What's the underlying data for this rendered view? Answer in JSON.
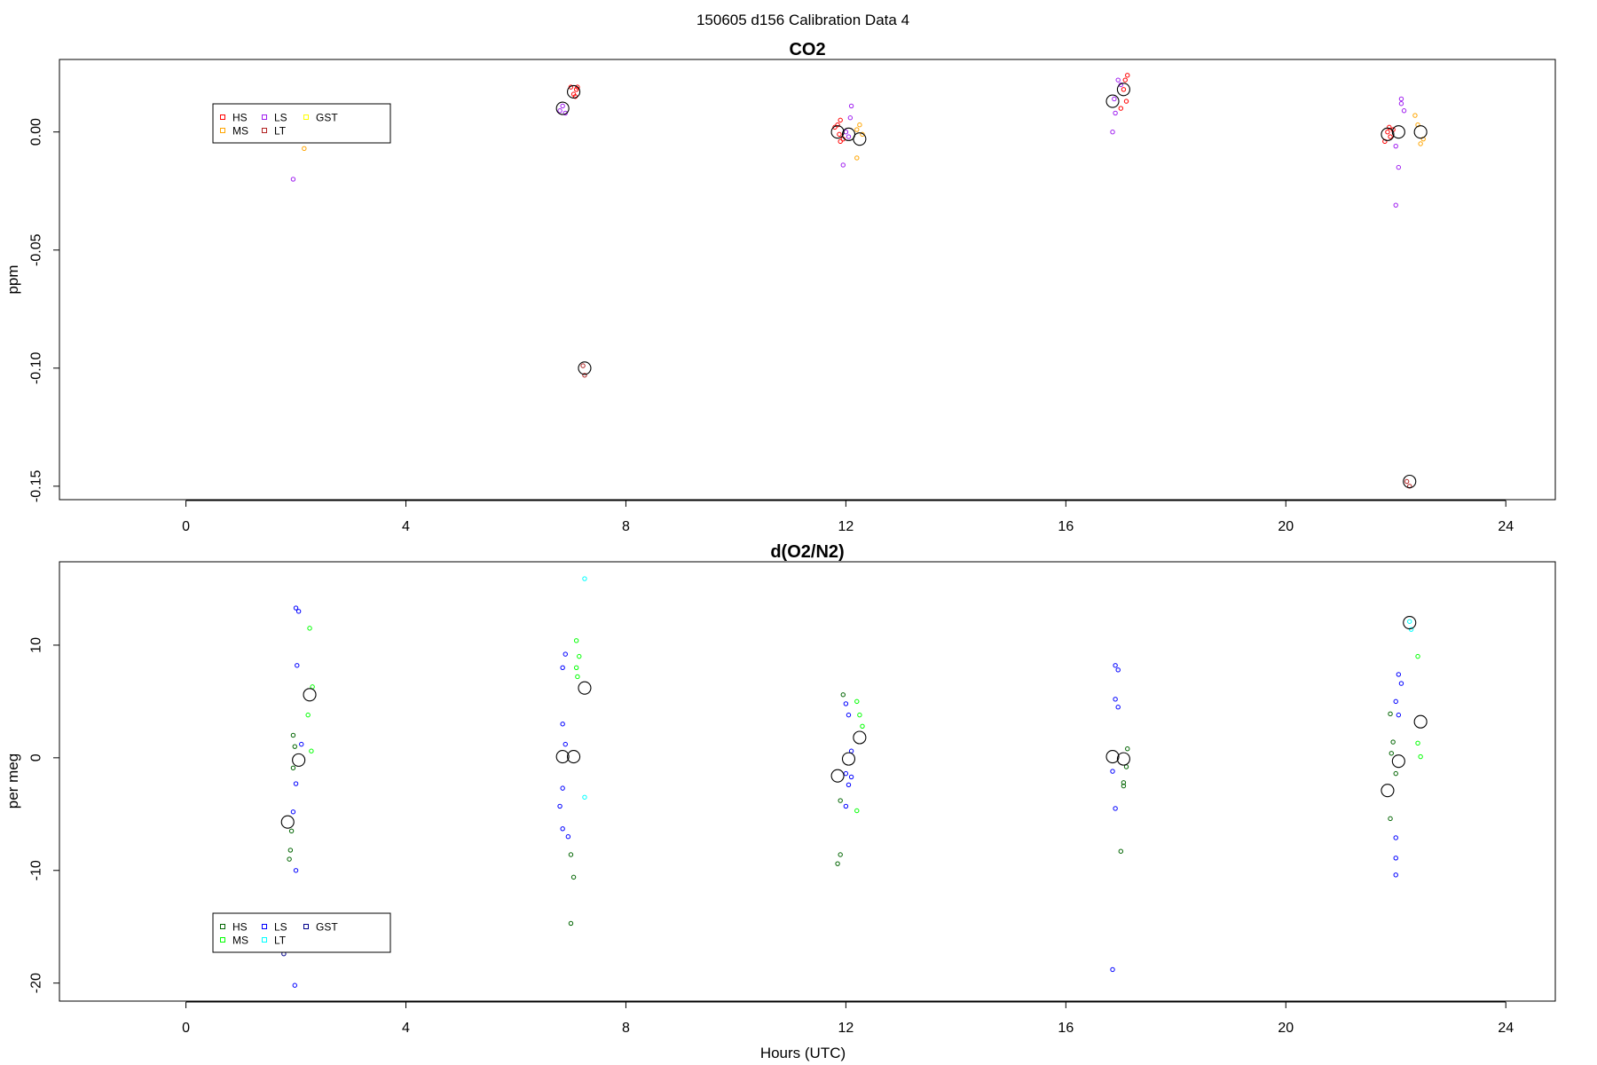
{
  "figure": {
    "title": "150605   d156   Calibration Data 4",
    "xlabel": "Hours (UTC)"
  },
  "chart_data": [
    {
      "type": "scatter",
      "title": "CO2",
      "xlabel": "",
      "ylabel": "ppm",
      "xlim": [
        -2.3,
        24.9
      ],
      "ylim": [
        -0.1557,
        0.0307
      ],
      "xticks": [
        0,
        4,
        8,
        12,
        16,
        20,
        24
      ],
      "yticks": [
        0.0,
        -0.05,
        -0.1,
        -0.15
      ],
      "ytick_labels": [
        "0.00",
        "-0.05",
        "-0.10",
        "-0.15"
      ],
      "legend": {
        "position": "top-left",
        "entries": [
          {
            "label": "HS",
            "color": "#ff0000"
          },
          {
            "label": "MS",
            "color": "#ffa500"
          },
          {
            "label": "LS",
            "color": "#a020f0"
          },
          {
            "label": "LT",
            "color": "#b22222"
          },
          {
            "label": "GST",
            "color": "#ffff00"
          }
        ]
      },
      "series": [
        {
          "name": "HS",
          "color": "#ff0000",
          "points": [
            [
              7.05,
              0.016
            ],
            [
              7.1,
              0.018
            ],
            [
              7.0,
              0.019
            ],
            [
              7.08,
              0.015
            ],
            [
              7.12,
              0.019
            ],
            [
              11.85,
              0.003
            ],
            [
              11.9,
              0.005
            ],
            [
              11.88,
              -0.001
            ],
            [
              11.95,
              -0.003
            ],
            [
              11.8,
              0.002
            ],
            [
              11.9,
              -0.004
            ],
            [
              17.05,
              0.018
            ],
            [
              17.1,
              0.013
            ],
            [
              17.0,
              0.01
            ],
            [
              17.08,
              0.022
            ],
            [
              17.12,
              0.024
            ],
            [
              21.85,
              0.0
            ],
            [
              21.9,
              -0.002
            ],
            [
              21.8,
              -0.004
            ],
            [
              21.95,
              0.001
            ],
            [
              21.88,
              0.002
            ]
          ]
        },
        {
          "name": "MS",
          "color": "#ffa500",
          "points": [
            [
              2.15,
              -0.007
            ],
            [
              12.2,
              -0.011
            ],
            [
              12.25,
              0.003
            ],
            [
              12.3,
              -0.001
            ],
            [
              12.2,
              0.001
            ],
            [
              22.4,
              0.003
            ],
            [
              22.45,
              -0.005
            ],
            [
              22.35,
              0.007
            ],
            [
              22.5,
              -0.003
            ]
          ]
        },
        {
          "name": "LS",
          "color": "#a020f0",
          "points": [
            [
              1.95,
              -0.02
            ],
            [
              6.85,
              0.011
            ],
            [
              6.9,
              0.008
            ],
            [
              6.8,
              0.009
            ],
            [
              12.0,
              0.0
            ],
            [
              12.05,
              -0.002
            ],
            [
              12.1,
              0.011
            ],
            [
              11.95,
              -0.014
            ],
            [
              12.08,
              0.006
            ],
            [
              16.85,
              0.0
            ],
            [
              16.9,
              0.008
            ],
            [
              16.95,
              0.022
            ],
            [
              17.0,
              0.02
            ],
            [
              16.88,
              0.014
            ],
            [
              22.1,
              0.014
            ],
            [
              22.05,
              -0.015
            ],
            [
              22.0,
              -0.031
            ],
            [
              22.15,
              0.009
            ],
            [
              22.1,
              0.012
            ],
            [
              22.0,
              -0.006
            ]
          ]
        },
        {
          "name": "LT",
          "color": "#b22222",
          "points": [
            [
              7.25,
              -0.103
            ],
            [
              7.22,
              -0.099
            ],
            [
              22.25,
              -0.15
            ],
            [
              22.2,
              -0.148
            ]
          ]
        },
        {
          "name": "mean",
          "color": "#000000",
          "marker": "large-circle",
          "points": [
            [
              6.85,
              0.01
            ],
            [
              7.05,
              0.017
            ],
            [
              7.25,
              -0.1
            ],
            [
              11.85,
              0.0
            ],
            [
              12.05,
              -0.001
            ],
            [
              12.25,
              -0.003
            ],
            [
              16.85,
              0.013
            ],
            [
              17.05,
              0.018
            ],
            [
              21.85,
              -0.001
            ],
            [
              22.05,
              0.0
            ],
            [
              22.25,
              -0.148
            ],
            [
              22.45,
              0.0
            ]
          ]
        }
      ]
    },
    {
      "type": "scatter",
      "title": "d(O2/N2)",
      "xlabel": "Hours (UTC)",
      "ylabel": "per meg",
      "xlim": [
        -2.3,
        24.9
      ],
      "ylim": [
        -21.6,
        17.4
      ],
      "xticks": [
        0,
        4,
        8,
        12,
        16,
        20,
        24
      ],
      "yticks": [
        10,
        0,
        -10,
        -20
      ],
      "ytick_labels": [
        "10",
        "0",
        "-10",
        "-20"
      ],
      "legend": {
        "position": "bottom-left",
        "entries": [
          {
            "label": "HS",
            "color": "#006400"
          },
          {
            "label": "MS",
            "color": "#00ff00"
          },
          {
            "label": "LS",
            "color": "#0000ff"
          },
          {
            "label": "LT",
            "color": "#00ffff"
          },
          {
            "label": "GST",
            "color": "#00008b"
          }
        ]
      },
      "series": [
        {
          "name": "HS",
          "color": "#006400",
          "points": [
            [
              1.88,
              -9.0
            ],
            [
              1.9,
              -8.2
            ],
            [
              1.92,
              -6.5
            ],
            [
              1.95,
              -0.9
            ],
            [
              1.95,
              2.0
            ],
            [
              1.98,
              1.0
            ],
            [
              7.0,
              -14.7
            ],
            [
              7.0,
              -8.6
            ],
            [
              7.05,
              -10.6
            ],
            [
              11.85,
              -9.4
            ],
            [
              11.9,
              -8.6
            ],
            [
              11.9,
              -3.8
            ],
            [
              11.95,
              5.6
            ],
            [
              17.05,
              -2.2
            ],
            [
              17.0,
              -8.3
            ],
            [
              17.1,
              -0.8
            ],
            [
              17.05,
              -2.5
            ],
            [
              17.12,
              0.8
            ],
            [
              21.9,
              -5.4
            ],
            [
              21.9,
              3.9
            ],
            [
              21.95,
              1.4
            ],
            [
              22.0,
              -1.4
            ],
            [
              21.92,
              0.4
            ]
          ]
        },
        {
          "name": "MS",
          "color": "#00ff00",
          "points": [
            [
              2.25,
              11.5
            ],
            [
              2.3,
              6.3
            ],
            [
              2.22,
              3.8
            ],
            [
              2.28,
              0.6
            ],
            [
              7.1,
              10.4
            ],
            [
              7.1,
              8.0
            ],
            [
              7.15,
              9.0
            ],
            [
              7.12,
              7.2
            ],
            [
              12.2,
              5.0
            ],
            [
              12.25,
              3.8
            ],
            [
              12.3,
              2.8
            ],
            [
              12.2,
              -4.7
            ],
            [
              22.4,
              1.3
            ],
            [
              22.45,
              0.1
            ],
            [
              22.4,
              9.0
            ]
          ]
        },
        {
          "name": "LS",
          "color": "#0000ff",
          "points": [
            [
              2.0,
              13.3
            ],
            [
              2.05,
              13.0
            ],
            [
              2.02,
              8.2
            ],
            [
              2.1,
              1.2
            ],
            [
              2.0,
              -2.3
            ],
            [
              1.95,
              -4.8
            ],
            [
              2.0,
              -10.0
            ],
            [
              1.98,
              -20.2
            ],
            [
              6.85,
              8.0
            ],
            [
              6.9,
              9.2
            ],
            [
              6.85,
              3.0
            ],
            [
              6.9,
              1.2
            ],
            [
              6.85,
              -2.7
            ],
            [
              6.8,
              -4.3
            ],
            [
              6.85,
              -6.3
            ],
            [
              6.95,
              -7.0
            ],
            [
              12.0,
              4.8
            ],
            [
              12.05,
              3.8
            ],
            [
              12.1,
              0.6
            ],
            [
              12.0,
              -1.4
            ],
            [
              12.05,
              -2.4
            ],
            [
              12.1,
              -1.7
            ],
            [
              12.0,
              -4.3
            ],
            [
              16.9,
              8.2
            ],
            [
              16.95,
              7.8
            ],
            [
              16.9,
              5.2
            ],
            [
              16.95,
              4.5
            ],
            [
              16.85,
              -1.2
            ],
            [
              16.9,
              -4.5
            ],
            [
              16.85,
              -18.8
            ],
            [
              22.05,
              7.4
            ],
            [
              22.1,
              6.6
            ],
            [
              22.0,
              5.0
            ],
            [
              22.05,
              3.8
            ],
            [
              22.0,
              -7.1
            ],
            [
              22.0,
              -8.9
            ],
            [
              22.0,
              -10.4
            ]
          ]
        },
        {
          "name": "LT",
          "color": "#00ffff",
          "points": [
            [
              7.25,
              15.9
            ],
            [
              7.25,
              -3.5
            ],
            [
              22.25,
              12.1
            ],
            [
              22.28,
              11.4
            ]
          ]
        },
        {
          "name": "GST",
          "color": "#00008b",
          "points": [
            [
              1.78,
              -17.4
            ]
          ]
        },
        {
          "name": "mean",
          "color": "#000000",
          "marker": "large-circle",
          "points": [
            [
              1.85,
              -5.7
            ],
            [
              2.05,
              -0.2
            ],
            [
              2.25,
              5.6
            ],
            [
              6.85,
              0.1
            ],
            [
              7.05,
              0.1
            ],
            [
              7.25,
              6.2
            ],
            [
              11.85,
              -1.6
            ],
            [
              12.05,
              -0.1
            ],
            [
              12.25,
              1.8
            ],
            [
              16.85,
              0.1
            ],
            [
              17.05,
              -0.1
            ],
            [
              21.85,
              -2.9
            ],
            [
              22.05,
              -0.3
            ],
            [
              22.25,
              12.0
            ],
            [
              22.45,
              3.2
            ]
          ]
        }
      ]
    }
  ]
}
